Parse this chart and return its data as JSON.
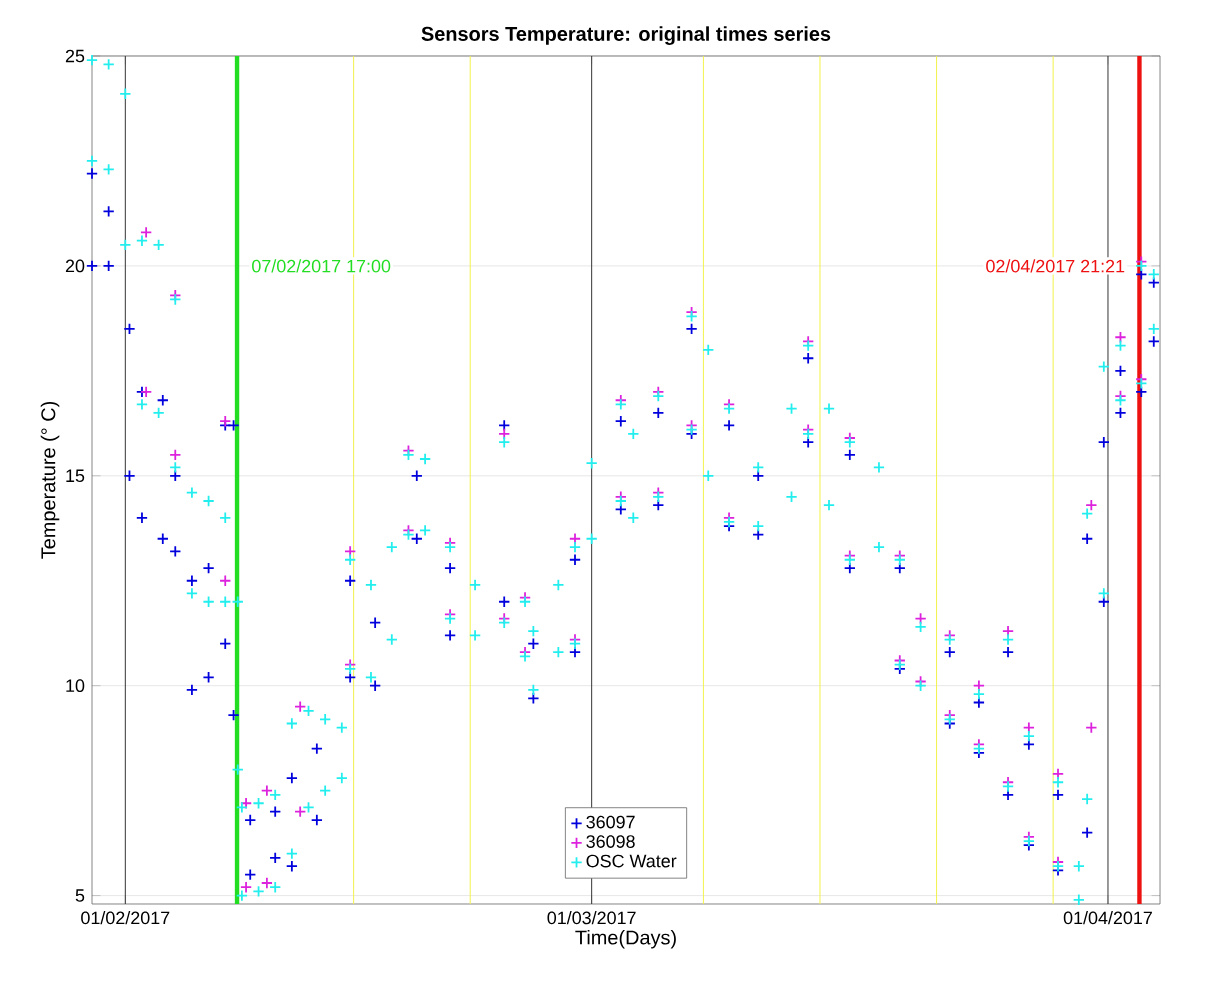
{
  "chart_data": {
    "type": "scatter",
    "title": "Sensors Temperature: original times series",
    "xlabel": "Time(Days)",
    "ylabel": "Temperature (° C)",
    "xlim": [
      "2017-01-30",
      "2017-04-04T03:00"
    ],
    "ylim": [
      4.8,
      25
    ],
    "xticks": [
      {
        "value": "2017-02-01",
        "label": "01/02/2017"
      },
      {
        "value": "2017-03-01",
        "label": "01/03/2017"
      },
      {
        "value": "2017-04-01",
        "label": "01/04/2017"
      }
    ],
    "yticks": [
      5,
      10,
      15,
      20,
      25
    ],
    "grid": "y",
    "legend": "bottom",
    "marker": "cross",
    "series": [
      {
        "name": "36097",
        "color": "#0000dd",
        "x": [
          "2017-01-30",
          "2017-01-30",
          "2017-01-31",
          "2017-01-31",
          "2017-02-01T06:00",
          "2017-02-01T06:00",
          "2017-02-02",
          "2017-02-02",
          "2017-02-03T06:00",
          "2017-02-03T06:00",
          "2017-02-04",
          "2017-02-04",
          "2017-02-05",
          "2017-02-05",
          "2017-02-06",
          "2017-02-06",
          "2017-02-07",
          "2017-02-07",
          "2017-02-07T12:00",
          "2017-02-07T12:00",
          "2017-02-08T12:00",
          "2017-02-08T12:00",
          "2017-02-10",
          "2017-02-10",
          "2017-02-11",
          "2017-02-11",
          "2017-02-12T12:00",
          "2017-02-12T12:00",
          "2017-02-14T12:00",
          "2017-02-14T12:00",
          "2017-02-16",
          "2017-02-16",
          "2017-02-18T12:00",
          "2017-02-18T12:00",
          "2017-02-20T12:00",
          "2017-02-20T12:00",
          "2017-02-23T18:00",
          "2017-02-23T18:00",
          "2017-02-25T12:00",
          "2017-02-25T12:00",
          "2017-02-28",
          "2017-02-28",
          "2017-03-02T18:00",
          "2017-03-02T18:00",
          "2017-03-05",
          "2017-03-05",
          "2017-03-07",
          "2017-03-07",
          "2017-03-09T06:00",
          "2017-03-09T06:00",
          "2017-03-11",
          "2017-03-11",
          "2017-03-14",
          "2017-03-14",
          "2017-03-16T12:00",
          "2017-03-16T12:00",
          "2017-03-19T12:00",
          "2017-03-19T12:00",
          "2017-03-22T12:00",
          "2017-03-22T12:00",
          "2017-03-24T06:00",
          "2017-03-24T06:00",
          "2017-03-26",
          "2017-03-26",
          "2017-03-27T06:00",
          "2017-03-27T06:00",
          "2017-03-29",
          "2017-03-29",
          "2017-03-30T18:00",
          "2017-03-30T18:00",
          "2017-03-31T18:00",
          "2017-03-31T18:00",
          "2017-04-01T18:00",
          "2017-04-01T18:00",
          "2017-04-03",
          "2017-04-03",
          "2017-04-03T18:00",
          "2017-04-03T18:00"
        ],
        "values": [
          22.2,
          20.0,
          21.3,
          20.0,
          18.5,
          15.0,
          17.0,
          14.0,
          16.8,
          13.5,
          15.0,
          13.2,
          12.5,
          9.9,
          12.8,
          10.2,
          16.2,
          11.0,
          16.2,
          9.3,
          6.8,
          5.5,
          7.0,
          5.9,
          7.8,
          5.7,
          8.5,
          6.8,
          12.5,
          10.2,
          11.5,
          10.0,
          15.0,
          13.5,
          12.8,
          11.2,
          16.2,
          12.0,
          11.0,
          9.7,
          13.0,
          10.8,
          16.3,
          14.2,
          16.5,
          14.3,
          18.5,
          16.0,
          16.2,
          13.8,
          15.0,
          13.6,
          17.8,
          15.8,
          15.5,
          12.8,
          12.8,
          10.4,
          10.8,
          9.1,
          9.6,
          8.4,
          10.8,
          7.4,
          8.6,
          6.2,
          7.4,
          5.6,
          13.5,
          6.5,
          15.8,
          12.0,
          17.5,
          16.5,
          19.8,
          17.0,
          19.6,
          18.2
        ]
      },
      {
        "name": "36098",
        "color": "#dd22dd",
        "x": [
          "2017-02-02T06:00",
          "2017-02-02T06:00",
          "2017-02-04",
          "2017-02-04",
          "2017-02-07",
          "2017-02-07",
          "2017-02-08T06:00",
          "2017-02-08T06:00",
          "2017-02-09T12:00",
          "2017-02-09T12:00",
          "2017-02-11T12:00",
          "2017-02-11T12:00",
          "2017-02-14T12:00",
          "2017-02-14T12:00",
          "2017-02-18",
          "2017-02-18",
          "2017-02-20T12:00",
          "2017-02-20T12:00",
          "2017-02-23T18:00",
          "2017-02-23T18:00",
          "2017-02-25",
          "2017-02-25",
          "2017-02-28",
          "2017-02-28",
          "2017-03-02T18:00",
          "2017-03-02T18:00",
          "2017-03-05",
          "2017-03-05",
          "2017-03-07",
          "2017-03-07",
          "2017-03-09T06:00",
          "2017-03-09T06:00",
          "2017-03-14",
          "2017-03-14",
          "2017-03-16T12:00",
          "2017-03-16T12:00",
          "2017-03-19T12:00",
          "2017-03-19T12:00",
          "2017-03-20T18:00",
          "2017-03-20T18:00",
          "2017-03-22T12:00",
          "2017-03-22T12:00",
          "2017-03-24T06:00",
          "2017-03-24T06:00",
          "2017-03-26",
          "2017-03-26",
          "2017-03-27T06:00",
          "2017-03-27T06:00",
          "2017-03-29",
          "2017-03-29",
          "2017-03-31",
          "2017-03-31",
          "2017-04-01T18:00",
          "2017-04-01T18:00",
          "2017-04-03",
          "2017-04-03"
        ],
        "values": [
          20.8,
          17.0,
          19.3,
          15.5,
          16.3,
          12.5,
          7.2,
          5.2,
          7.5,
          5.3,
          9.5,
          7.0,
          13.2,
          10.5,
          15.6,
          13.7,
          13.4,
          11.7,
          16.0,
          11.6,
          12.1,
          10.8,
          13.5,
          11.1,
          16.8,
          14.5,
          17.0,
          14.6,
          18.9,
          16.2,
          16.7,
          14.0,
          18.2,
          16.1,
          15.9,
          13.1,
          13.1,
          10.6,
          11.6,
          10.1,
          11.2,
          9.3,
          10.0,
          8.6,
          11.3,
          7.7,
          9.0,
          6.4,
          7.9,
          5.8,
          14.3,
          9.0,
          18.3,
          16.9,
          20.1,
          17.3
        ]
      },
      {
        "name": "OSC Water",
        "color": "#22eeee",
        "x": [
          "2017-01-30",
          "2017-01-30",
          "2017-01-31",
          "2017-01-31",
          "2017-02-01",
          "2017-02-01",
          "2017-02-02",
          "2017-02-02",
          "2017-02-03",
          "2017-02-03",
          "2017-02-04",
          "2017-02-04",
          "2017-02-05",
          "2017-02-05",
          "2017-02-06",
          "2017-02-06",
          "2017-02-07",
          "2017-02-07",
          "2017-02-07T18:00",
          "2017-02-07T18:00",
          "2017-02-08",
          "2017-02-08",
          "2017-02-09",
          "2017-02-09",
          "2017-02-10",
          "2017-02-10",
          "2017-02-11",
          "2017-02-11",
          "2017-02-12",
          "2017-02-12",
          "2017-02-13",
          "2017-02-13",
          "2017-02-14",
          "2017-02-14",
          "2017-02-14T12:00",
          "2017-02-14T12:00",
          "2017-02-15T18:00",
          "2017-02-15T18:00",
          "2017-02-17",
          "2017-02-17",
          "2017-02-18",
          "2017-02-18",
          "2017-02-19",
          "2017-02-19",
          "2017-02-20T12:00",
          "2017-02-20T12:00",
          "2017-02-22",
          "2017-02-22",
          "2017-02-23T18:00",
          "2017-02-23T18:00",
          "2017-02-25",
          "2017-02-25",
          "2017-02-25T12:00",
          "2017-02-25T12:00",
          "2017-02-27",
          "2017-02-27",
          "2017-02-28",
          "2017-02-28",
          "2017-03-01",
          "2017-03-01",
          "2017-03-02T18:00",
          "2017-03-02T18:00",
          "2017-03-03T12:00",
          "2017-03-03T12:00",
          "2017-03-05",
          "2017-03-05",
          "2017-03-07",
          "2017-03-07",
          "2017-03-08",
          "2017-03-08",
          "2017-03-09T06:00",
          "2017-03-09T06:00",
          "2017-03-11",
          "2017-03-11",
          "2017-03-13",
          "2017-03-13",
          "2017-03-14",
          "2017-03-14",
          "2017-03-15T06:00",
          "2017-03-15T06:00",
          "2017-03-16T12:00",
          "2017-03-16T12:00",
          "2017-03-18T06:00",
          "2017-03-18T06:00",
          "2017-03-19T12:00",
          "2017-03-19T12:00",
          "2017-03-20T18:00",
          "2017-03-20T18:00",
          "2017-03-22T12:00",
          "2017-03-22T12:00",
          "2017-03-24T06:00",
          "2017-03-24T06:00",
          "2017-03-26",
          "2017-03-26",
          "2017-03-27T06:00",
          "2017-03-27T06:00",
          "2017-03-29",
          "2017-03-29",
          "2017-03-30T06:00",
          "2017-03-30T06:00",
          "2017-03-30T18:00",
          "2017-03-30T18:00",
          "2017-03-31T18:00",
          "2017-03-31T18:00",
          "2017-04-01T18:00",
          "2017-04-01T18:00",
          "2017-04-03",
          "2017-04-03",
          "2017-04-03T18:00",
          "2017-04-03T18:00"
        ],
        "values": [
          24.9,
          22.5,
          24.8,
          22.3,
          24.1,
          20.5,
          20.6,
          16.7,
          20.5,
          16.5,
          19.2,
          15.2,
          14.6,
          12.2,
          14.4,
          12.0,
          14.0,
          12.0,
          12.0,
          8.0,
          7.1,
          5.0,
          7.2,
          5.1,
          7.4,
          5.2,
          9.1,
          6.0,
          9.4,
          7.1,
          9.2,
          7.5,
          9.0,
          7.8,
          13.0,
          10.4,
          12.4,
          10.2,
          13.3,
          11.1,
          15.5,
          13.6,
          15.4,
          13.7,
          13.3,
          11.6,
          12.4,
          11.2,
          15.8,
          11.5,
          12.0,
          10.7,
          11.3,
          9.9,
          12.4,
          10.8,
          13.3,
          11.0,
          15.3,
          13.5,
          16.7,
          14.4,
          16.0,
          14.0,
          16.9,
          14.5,
          18.8,
          16.1,
          18.0,
          15.0,
          16.6,
          13.9,
          15.2,
          13.8,
          16.6,
          14.5,
          18.1,
          16.0,
          16.6,
          14.3,
          15.8,
          13.0,
          15.2,
          13.3,
          13.0,
          10.5,
          11.4,
          10.0,
          11.1,
          9.2,
          9.8,
          8.5,
          11.1,
          7.6,
          8.8,
          6.3,
          7.7,
          5.7,
          5.7,
          4.9,
          14.1,
          7.3,
          17.6,
          12.2,
          18.1,
          16.8,
          20.0,
          17.2,
          19.8,
          18.5
        ]
      }
    ],
    "ref_lines": [
      {
        "axis": "x",
        "value": "2017-02-01",
        "color": "#333333"
      },
      {
        "axis": "x",
        "value": "2017-03-01",
        "color": "#333333"
      },
      {
        "axis": "x",
        "value": "2017-04-01",
        "color": "#333333"
      },
      {
        "axis": "x",
        "value": "2017-02-14T17:00",
        "color": "#f2f24a"
      },
      {
        "axis": "x",
        "value": "2017-02-21T17:00",
        "color": "#f2f24a"
      },
      {
        "axis": "x",
        "value": "2017-03-07T17:00",
        "color": "#f2f24a"
      },
      {
        "axis": "x",
        "value": "2017-03-14T17:00",
        "color": "#f2f24a"
      },
      {
        "axis": "x",
        "value": "2017-03-21T17:00",
        "color": "#f2f24a"
      },
      {
        "axis": "x",
        "value": "2017-03-28T17:00",
        "color": "#f2f24a"
      },
      {
        "axis": "x",
        "value": "2017-02-07T17:00",
        "label": "07/02/2017 17:00",
        "color": "#22dd22"
      },
      {
        "axis": "x",
        "value": "2017-04-02T21:21",
        "label": "02/04/2017 21:21",
        "color": "#ee1111"
      }
    ]
  }
}
